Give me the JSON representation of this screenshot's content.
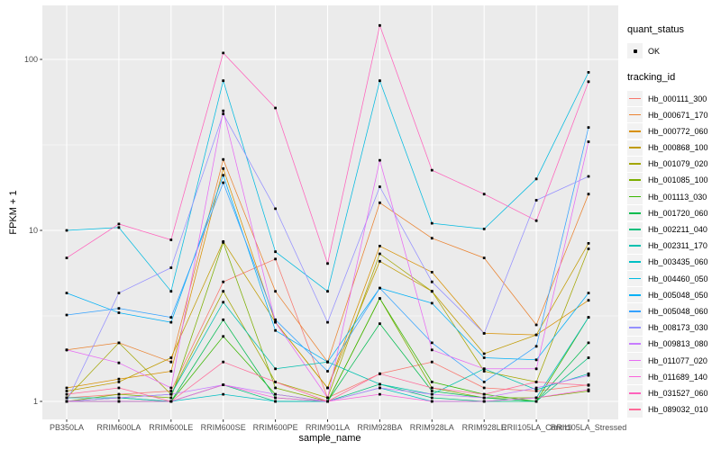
{
  "figure": {
    "colors": {
      "panel_bg": "#EBEBEB",
      "grid": "#FFFFFF",
      "tick_mark": "#333333",
      "tick_text": "#4D4D4D",
      "point": "#000000",
      "legend_key_bg": "#F2F2F2"
    },
    "legend": {
      "quant_status_title": "quant_status",
      "quant_status_items": [
        "OK"
      ],
      "tracking_id_title": "tracking_id"
    }
  },
  "chart_data": {
    "type": "line",
    "title": "",
    "xlabel": "sample_name",
    "ylabel": "FPKM + 1",
    "y_scale": "log10",
    "ylim": [
      0.78,
      210
    ],
    "y_ticks": [
      1,
      10,
      100
    ],
    "y_tick_labels": [
      "1",
      "10",
      "100"
    ],
    "y_minor_ticks": [
      3.1623,
      31.623
    ],
    "grid": true,
    "legend_position": "right",
    "quant_status": {
      "title": "quant_status",
      "levels": [
        "OK"
      ]
    },
    "categories": [
      "PB350LA",
      "RRIM600LA",
      "RRIM600LE",
      "RRIM600SE",
      "RRIM600PE",
      "RRIM901LA",
      "RRIM928BA",
      "RRIM928LA",
      "RRIM928LE",
      "RRII105LA_Control",
      "RRII105LA_Stressed"
    ],
    "series": [
      {
        "name": "Hb_000111_300",
        "color": "#F8766D",
        "values": [
          1.05,
          1.1,
          1.15,
          5.0,
          6.8,
          1.05,
          1.45,
          1.7,
          1.2,
          1.15,
          1.25
        ]
      },
      {
        "name": "Hb_000671_170",
        "color": "#EA8331",
        "values": [
          2.0,
          2.2,
          1.7,
          26,
          4.4,
          1.7,
          14.5,
          9.0,
          6.9,
          2.8,
          16.3
        ]
      },
      {
        "name": "Hb_000772_060",
        "color": "#D89000",
        "values": [
          1.2,
          1.35,
          1.5,
          23,
          2.9,
          1.2,
          8.1,
          5.7,
          2.5,
          2.45,
          3.9
        ]
      },
      {
        "name": "Hb_000868_100",
        "color": "#C09B00",
        "values": [
          1.15,
          1.3,
          1.8,
          8.6,
          2.9,
          1.2,
          6.6,
          4.4,
          1.9,
          2.45,
          8.4
        ]
      },
      {
        "name": "Hb_001079_020",
        "color": "#A3A500",
        "values": [
          1.05,
          2.2,
          1.1,
          4.4,
          1.3,
          1.05,
          7.3,
          4.4,
          1.5,
          1.3,
          7.8
        ]
      },
      {
        "name": "Hb_001085_100",
        "color": "#7CAE00",
        "values": [
          1.0,
          1.1,
          1.05,
          8.5,
          1.2,
          1.0,
          4.0,
          1.2,
          1.05,
          1.05,
          1.15
        ]
      },
      {
        "name": "Hb_001113_030",
        "color": "#39B600",
        "values": [
          1.0,
          1.05,
          1.0,
          2.4,
          1.1,
          1.0,
          4.0,
          1.3,
          1.1,
          1.0,
          3.1
        ]
      },
      {
        "name": "Hb_001720_060",
        "color": "#00BB4E",
        "values": [
          1.0,
          1.0,
          1.0,
          3.0,
          1.05,
          1.0,
          2.85,
          1.15,
          1.05,
          1.0,
          2.2
        ]
      },
      {
        "name": "Hb_002211_040",
        "color": "#00BF7D",
        "values": [
          1.0,
          1.0,
          1.0,
          1.25,
          1.0,
          1.0,
          1.26,
          1.05,
          1.0,
          1.0,
          1.8
        ]
      },
      {
        "name": "Hb_002311_170",
        "color": "#00C0AF",
        "values": [
          1.05,
          1.05,
          1.1,
          3.8,
          1.55,
          1.7,
          1.26,
          1.1,
          1.55,
          1.17,
          1.45
        ]
      },
      {
        "name": "Hb_003435_060",
        "color": "#00BFC4",
        "values": [
          1.0,
          1.05,
          1.0,
          1.1,
          1.0,
          1.0,
          1.2,
          1.0,
          1.0,
          1.05,
          3.1
        ]
      },
      {
        "name": "Hb_004460_050",
        "color": "#00BAE0",
        "values": [
          10,
          10.4,
          4.4,
          75,
          7.5,
          4.4,
          75,
          11,
          10.2,
          20,
          84
        ]
      },
      {
        "name": "Hb_005048_050",
        "color": "#00B0F6",
        "values": [
          4.3,
          3.3,
          2.9,
          21,
          2.6,
          1.7,
          4.6,
          3.75,
          1.8,
          1.75,
          4.3
        ]
      },
      {
        "name": "Hb_005048_060",
        "color": "#35A2FF",
        "values": [
          3.2,
          3.5,
          3.1,
          19,
          3.0,
          1.5,
          4.6,
          2.2,
          1.3,
          2.1,
          40
        ]
      },
      {
        "name": "Hb_008173_030",
        "color": "#9590FF",
        "values": [
          1.0,
          4.3,
          6.05,
          48,
          13.4,
          2.9,
          18,
          5.0,
          2.5,
          15,
          20.7
        ]
      },
      {
        "name": "Hb_009813_080",
        "color": "#C77CFF",
        "values": [
          1.0,
          1.05,
          1.1,
          1.25,
          1.1,
          1.0,
          1.2,
          1.1,
          1.05,
          1.2,
          1.42
        ]
      },
      {
        "name": "Hb_011077_020",
        "color": "#E76BF3",
        "values": [
          2.0,
          1.68,
          1.2,
          50,
          2.9,
          1.05,
          25.7,
          2.0,
          1.55,
          1.55,
          33
        ]
      },
      {
        "name": "Hb_011689_140",
        "color": "#FA62DB",
        "values": [
          1.0,
          1.0,
          1.0,
          1.25,
          1.05,
          1.0,
          1.1,
          1.0,
          1.0,
          1.05,
          1.17
        ]
      },
      {
        "name": "Hb_031527_060",
        "color": "#FF62BC",
        "values": [
          6.9,
          10.9,
          8.8,
          109,
          52,
          6.4,
          158,
          22.5,
          16.3,
          11.4,
          74
        ]
      },
      {
        "name": "Hb_089032_010",
        "color": "#FF6A98",
        "values": [
          1.1,
          1.2,
          1.0,
          1.7,
          1.3,
          1.0,
          1.45,
          1.2,
          1.1,
          1.3,
          1.24
        ]
      }
    ]
  }
}
